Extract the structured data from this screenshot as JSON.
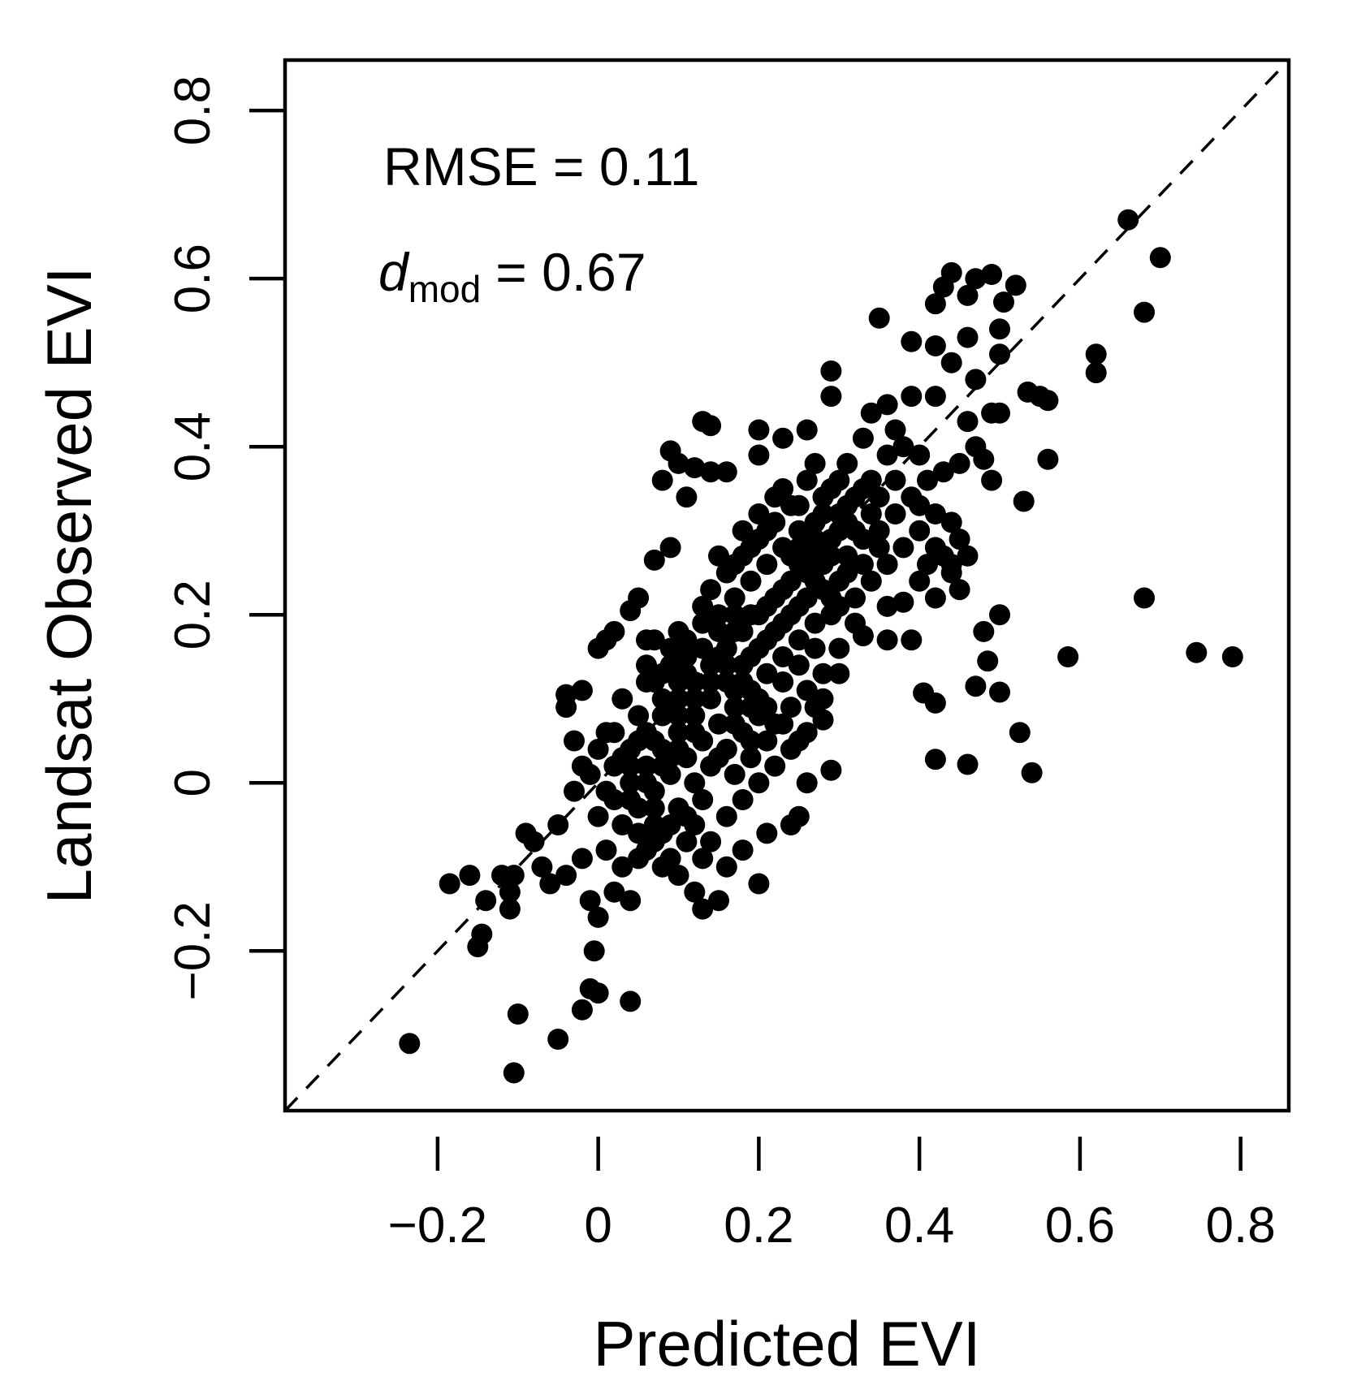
{
  "chart_data": {
    "type": "scatter",
    "xlabel": "Predicted EVI",
    "ylabel": "Landsat Observed EVI",
    "xlim": [
      -0.39,
      0.86
    ],
    "ylim": [
      -0.39,
      0.86
    ],
    "xticks": [
      -0.2,
      0,
      0.2,
      0.4,
      0.6,
      0.8
    ],
    "xtick_labels": [
      "−0.2",
      "0",
      "0.2",
      "0.4",
      "0.6",
      "0.8"
    ],
    "yticks": [
      -0.2,
      0,
      0.2,
      0.4,
      0.6,
      0.8
    ],
    "ytick_labels": [
      "−0.2",
      "0",
      "0.2",
      "0.4",
      "0.6",
      "0.8"
    ],
    "reference_line": {
      "type": "1:1",
      "style": "dashed"
    },
    "grid": false,
    "marker_color": "#000000",
    "annotations": {
      "rmse": "RMSE = 0.11",
      "d_symbol": "d",
      "d_subscript": "mod",
      "d_value": "= 0.67"
    },
    "points": [
      [
        -0.235,
        -0.31
      ],
      [
        -0.185,
        -0.12
      ],
      [
        -0.16,
        -0.11
      ],
      [
        -0.15,
        -0.195
      ],
      [
        -0.145,
        -0.18
      ],
      [
        -0.14,
        -0.14
      ],
      [
        -0.12,
        -0.11
      ],
      [
        -0.11,
        -0.13
      ],
      [
        -0.11,
        -0.15
      ],
      [
        -0.105,
        -0.11
      ],
      [
        -0.1,
        -0.275
      ],
      [
        -0.105,
        -0.345
      ],
      [
        -0.05,
        -0.305
      ],
      [
        -0.02,
        -0.27
      ],
      [
        -0.01,
        -0.245
      ],
      [
        0.0,
        -0.25
      ],
      [
        -0.005,
        -0.2
      ],
      [
        0.04,
        -0.26
      ],
      [
        0.0,
        -0.16
      ],
      [
        0.04,
        -0.14
      ],
      [
        0.79,
        0.15
      ],
      [
        0.745,
        0.155
      ],
      [
        0.68,
        0.22
      ],
      [
        0.585,
        0.15
      ],
      [
        0.54,
        0.012
      ],
      [
        0.525,
        0.06
      ],
      [
        0.5,
        0.2
      ],
      [
        0.5,
        0.108
      ],
      [
        0.47,
        0.115
      ],
      [
        0.46,
        0.022
      ],
      [
        0.42,
        0.028
      ],
      [
        0.42,
        0.095
      ],
      [
        0.405,
        0.107
      ],
      [
        0.48,
        0.18
      ],
      [
        0.485,
        0.145
      ],
      [
        0.7,
        0.625
      ],
      [
        0.68,
        0.56
      ],
      [
        0.66,
        0.67
      ],
      [
        0.62,
        0.51
      ],
      [
        0.62,
        0.488
      ],
      [
        0.56,
        0.455
      ],
      [
        0.56,
        0.385
      ],
      [
        0.53,
        0.335
      ],
      [
        0.535,
        0.465
      ],
      [
        0.55,
        0.46
      ],
      [
        0.52,
        0.592
      ],
      [
        0.505,
        0.572
      ],
      [
        0.5,
        0.54
      ],
      [
        0.49,
        0.605
      ],
      [
        0.47,
        0.6
      ],
      [
        0.46,
        0.58
      ],
      [
        0.44,
        0.607
      ],
      [
        0.43,
        0.59
      ],
      [
        0.42,
        0.57
      ],
      [
        0.35,
        0.553
      ],
      [
        0.39,
        0.525
      ],
      [
        0.42,
        0.52
      ],
      [
        0.44,
        0.5
      ],
      [
        0.46,
        0.53
      ],
      [
        0.5,
        0.51
      ],
      [
        0.47,
        0.48
      ],
      [
        0.49,
        0.44
      ],
      [
        0.48,
        0.385
      ],
      [
        0.49,
        0.36
      ],
      [
        0.5,
        0.44
      ],
      [
        0.29,
        0.49
      ],
      [
        0.29,
        0.46
      ],
      [
        0.13,
        0.43
      ],
      [
        0.14,
        0.425
      ],
      [
        0.2,
        0.42
      ],
      [
        0.09,
        0.395
      ],
      [
        0.1,
        0.38
      ],
      [
        0.08,
        0.36
      ],
      [
        0.11,
        0.34
      ],
      [
        0.12,
        0.375
      ],
      [
        0.14,
        0.37
      ],
      [
        0.16,
        0.37
      ],
      [
        0.09,
        0.28
      ],
      [
        0.07,
        0.265
      ],
      [
        0.2,
        0.39
      ],
      [
        0.23,
        0.41
      ],
      [
        0.26,
        0.42
      ],
      [
        0.05,
        0.22
      ],
      [
        0.04,
        0.205
      ],
      [
        0.02,
        0.18
      ],
      [
        0.0,
        0.16
      ],
      [
        0.01,
        0.17
      ],
      [
        0.1,
        0.18
      ],
      [
        0.06,
        0.17
      ],
      [
        0.07,
        0.17
      ],
      [
        -0.04,
        0.105
      ],
      [
        -0.02,
        0.11
      ],
      [
        0.01,
        0.06
      ],
      [
        -0.03,
        0.05
      ],
      [
        -0.04,
        0.09
      ],
      [
        -0.01,
        0.01
      ],
      [
        -0.03,
        -0.01
      ],
      [
        -0.08,
        -0.07
      ],
      [
        -0.09,
        -0.06
      ],
      [
        -0.05,
        -0.05
      ],
      [
        -0.07,
        -0.1
      ],
      [
        -0.06,
        -0.12
      ],
      [
        -0.04,
        -0.11
      ],
      [
        -0.02,
        -0.09
      ],
      [
        0.01,
        -0.08
      ],
      [
        0.02,
        -0.13
      ],
      [
        -0.01,
        -0.14
      ],
      [
        0.03,
        -0.1
      ],
      [
        0.05,
        -0.06
      ],
      [
        0.07,
        -0.05
      ],
      [
        0.08,
        -0.1
      ],
      [
        0.1,
        -0.11
      ],
      [
        0.12,
        -0.13
      ],
      [
        0.13,
        -0.15
      ],
      [
        0.15,
        -0.14
      ],
      [
        0.16,
        -0.1
      ],
      [
        0.18,
        -0.08
      ],
      [
        0.2,
        -0.12
      ],
      [
        0.21,
        -0.06
      ],
      [
        0.24,
        -0.05
      ],
      [
        0.25,
        -0.04
      ],
      [
        0.26,
        0.0
      ],
      [
        0.29,
        0.015
      ],
      [
        0.28,
        0.075
      ],
      [
        0.3,
        0.13
      ],
      [
        0.33,
        0.175
      ],
      [
        0.36,
        0.17
      ],
      [
        0.38,
        0.215
      ],
      [
        0.39,
        0.17
      ],
      [
        0.36,
        0.21
      ],
      [
        0.4,
        0.24
      ],
      [
        0.42,
        0.22
      ],
      [
        0.45,
        0.23
      ],
      [
        0.44,
        0.25
      ],
      [
        0.45,
        0.29
      ],
      [
        0.44,
        0.31
      ],
      [
        0.42,
        0.32
      ],
      [
        0.4,
        0.33
      ],
      [
        0.43,
        0.37
      ],
      [
        0.45,
        0.38
      ],
      [
        0.47,
        0.4
      ],
      [
        0.46,
        0.43
      ],
      [
        0.42,
        0.46
      ],
      [
        0.39,
        0.46
      ],
      [
        0.36,
        0.45
      ],
      [
        0.34,
        0.44
      ],
      [
        0.33,
        0.41
      ],
      [
        0.31,
        0.38
      ],
      [
        0.29,
        0.35
      ],
      [
        0.34,
        0.36
      ],
      [
        0.36,
        0.39
      ],
      [
        0.37,
        0.42
      ],
      [
        0.38,
        0.4
      ],
      [
        0.4,
        0.39
      ],
      [
        0.41,
        0.36
      ],
      [
        0.15,
        0.27
      ],
      [
        0.17,
        0.26
      ],
      [
        0.18,
        0.3
      ],
      [
        0.2,
        0.32
      ],
      [
        0.22,
        0.34
      ],
      [
        0.24,
        0.33
      ],
      [
        0.26,
        0.36
      ],
      [
        0.27,
        0.38
      ],
      [
        0.28,
        0.34
      ],
      [
        0.3,
        0.32
      ],
      [
        0.32,
        0.3
      ],
      [
        0.34,
        0.32
      ],
      [
        0.35,
        0.28
      ],
      [
        0.33,
        0.26
      ],
      [
        0.31,
        0.25
      ],
      [
        0.29,
        0.27
      ],
      [
        0.27,
        0.29
      ],
      [
        0.25,
        0.3
      ],
      [
        0.23,
        0.28
      ],
      [
        0.21,
        0.26
      ],
      [
        0.19,
        0.24
      ],
      [
        0.17,
        0.22
      ],
      [
        0.15,
        0.2
      ],
      [
        0.13,
        0.19
      ],
      [
        0.11,
        0.17
      ],
      [
        0.14,
        0.23
      ],
      [
        0.16,
        0.25
      ],
      [
        0.18,
        0.27
      ],
      [
        0.2,
        0.29
      ],
      [
        0.22,
        0.31
      ],
      [
        0.24,
        0.27
      ],
      [
        0.26,
        0.25
      ],
      [
        0.28,
        0.23
      ],
      [
        0.3,
        0.21
      ],
      [
        0.32,
        0.19
      ],
      [
        0.3,
        0.24
      ],
      [
        0.28,
        0.26
      ],
      [
        0.26,
        0.22
      ],
      [
        0.24,
        0.2
      ],
      [
        0.22,
        0.18
      ],
      [
        0.2,
        0.16
      ],
      [
        0.18,
        0.14
      ],
      [
        0.16,
        0.12
      ],
      [
        0.14,
        0.1
      ],
      [
        0.12,
        0.08
      ],
      [
        0.1,
        0.06
      ],
      [
        0.08,
        0.04
      ],
      [
        0.06,
        0.02
      ],
      [
        0.04,
        0.0
      ],
      [
        0.02,
        -0.02
      ],
      [
        0.0,
        -0.04
      ],
      [
        0.03,
        -0.05
      ],
      [
        0.05,
        -0.03
      ],
      [
        0.07,
        -0.01
      ],
      [
        0.09,
        0.01
      ],
      [
        0.11,
        0.03
      ],
      [
        0.13,
        0.05
      ],
      [
        0.15,
        0.07
      ],
      [
        0.17,
        0.09
      ],
      [
        0.19,
        0.11
      ],
      [
        0.21,
        0.13
      ],
      [
        0.23,
        0.15
      ],
      [
        0.25,
        0.17
      ],
      [
        0.27,
        0.19
      ],
      [
        0.29,
        0.2
      ],
      [
        0.12,
        0.12
      ],
      [
        0.14,
        0.14
      ],
      [
        0.16,
        0.16
      ],
      [
        0.18,
        0.18
      ],
      [
        0.2,
        0.2
      ],
      [
        0.22,
        0.22
      ],
      [
        0.24,
        0.24
      ],
      [
        0.26,
        0.26
      ],
      [
        0.28,
        0.28
      ],
      [
        0.3,
        0.3
      ],
      [
        0.1,
        0.1
      ],
      [
        0.08,
        0.08
      ],
      [
        0.06,
        0.06
      ],
      [
        0.04,
        0.04
      ],
      [
        0.02,
        0.02
      ],
      [
        0.07,
        0.12
      ],
      [
        0.09,
        0.14
      ],
      [
        0.11,
        0.13
      ],
      [
        0.13,
        0.16
      ],
      [
        0.15,
        0.15
      ],
      [
        0.17,
        0.18
      ],
      [
        0.19,
        0.2
      ],
      [
        0.21,
        0.21
      ],
      [
        0.23,
        0.23
      ],
      [
        0.25,
        0.26
      ],
      [
        0.1,
        -0.03
      ],
      [
        0.12,
        -0.05
      ],
      [
        0.14,
        -0.07
      ],
      [
        0.16,
        -0.04
      ],
      [
        0.18,
        -0.02
      ],
      [
        0.2,
        0.0
      ],
      [
        0.22,
        0.02
      ],
      [
        0.24,
        0.04
      ],
      [
        0.26,
        0.06
      ],
      [
        0.28,
        0.1
      ],
      [
        0.12,
        0.0
      ],
      [
        0.14,
        0.02
      ],
      [
        0.16,
        0.04
      ],
      [
        0.18,
        0.06
      ],
      [
        0.2,
        0.08
      ],
      [
        0.08,
        -0.06
      ],
      [
        0.06,
        -0.08
      ],
      [
        0.09,
        -0.09
      ],
      [
        0.11,
        -0.07
      ],
      [
        0.13,
        -0.09
      ],
      [
        0.05,
        0.08
      ],
      [
        0.03,
        0.1
      ],
      [
        0.06,
        0.12
      ],
      [
        0.08,
        0.1
      ],
      [
        0.1,
        0.12
      ],
      [
        0.02,
        0.06
      ],
      [
        0.0,
        0.04
      ],
      [
        -0.02,
        0.02
      ],
      [
        0.01,
        -0.01
      ],
      [
        0.03,
        0.03
      ],
      [
        0.31,
        0.33
      ],
      [
        0.33,
        0.35
      ],
      [
        0.35,
        0.3
      ],
      [
        0.37,
        0.32
      ],
      [
        0.39,
        0.34
      ],
      [
        0.4,
        0.3
      ],
      [
        0.38,
        0.28
      ],
      [
        0.36,
        0.26
      ],
      [
        0.34,
        0.24
      ],
      [
        0.32,
        0.22
      ],
      [
        0.27,
        0.31
      ],
      [
        0.25,
        0.33
      ],
      [
        0.23,
        0.35
      ],
      [
        0.21,
        0.3
      ],
      [
        0.19,
        0.28
      ],
      [
        0.17,
        0.2
      ],
      [
        0.15,
        0.18
      ],
      [
        0.13,
        0.21
      ],
      [
        0.19,
        0.15
      ],
      [
        0.21,
        0.17
      ],
      [
        0.23,
        0.19
      ],
      [
        0.25,
        0.21
      ],
      [
        0.27,
        0.24
      ],
      [
        0.29,
        0.22
      ],
      [
        0.31,
        0.27
      ],
      [
        0.22,
        0.07
      ],
      [
        0.24,
        0.09
      ],
      [
        0.26,
        0.11
      ],
      [
        0.23,
        0.12
      ],
      [
        0.25,
        0.14
      ],
      [
        0.27,
        0.16
      ],
      [
        0.28,
        0.13
      ],
      [
        0.3,
        0.16
      ],
      [
        0.27,
        0.09
      ],
      [
        0.25,
        0.05
      ],
      [
        0.08,
        0.13
      ],
      [
        0.06,
        0.14
      ],
      [
        0.09,
        0.16
      ],
      [
        0.11,
        0.15
      ],
      [
        0.1,
        0.08
      ],
      [
        0.12,
        0.1
      ],
      [
        0.14,
        0.12
      ],
      [
        0.16,
        0.14
      ],
      [
        0.18,
        0.12
      ],
      [
        0.2,
        0.1
      ],
      [
        0.15,
        0.03
      ],
      [
        0.17,
        0.01
      ],
      [
        0.19,
        0.03
      ],
      [
        0.21,
        0.05
      ],
      [
        0.23,
        0.07
      ],
      [
        0.09,
        0.03
      ],
      [
        0.07,
        0.05
      ],
      [
        0.05,
        0.05
      ],
      [
        0.07,
        -0.03
      ],
      [
        0.04,
        -0.02
      ],
      [
        0.33,
        0.29
      ],
      [
        0.31,
        0.31
      ],
      [
        0.29,
        0.29
      ],
      [
        0.27,
        0.27
      ],
      [
        0.25,
        0.28
      ],
      [
        0.35,
        0.34
      ],
      [
        0.37,
        0.36
      ],
      [
        0.32,
        0.34
      ],
      [
        0.3,
        0.36
      ],
      [
        0.28,
        0.32
      ],
      [
        0.42,
        0.28
      ],
      [
        0.43,
        0.27
      ],
      [
        0.41,
        0.26
      ],
      [
        0.44,
        0.26
      ],
      [
        0.46,
        0.27
      ],
      [
        0.19,
        0.05
      ],
      [
        0.17,
        0.07
      ],
      [
        0.21,
        0.09
      ],
      [
        0.19,
        0.09
      ],
      [
        0.17,
        0.11
      ],
      [
        0.12,
        0.06
      ],
      [
        0.1,
        0.04
      ],
      [
        0.08,
        0.02
      ],
      [
        0.06,
        0.0
      ],
      [
        0.04,
        0.02
      ],
      [
        0.13,
        -0.02
      ],
      [
        0.11,
        -0.04
      ],
      [
        0.09,
        -0.05
      ],
      [
        0.07,
        -0.07
      ],
      [
        0.05,
        -0.09
      ]
    ]
  }
}
